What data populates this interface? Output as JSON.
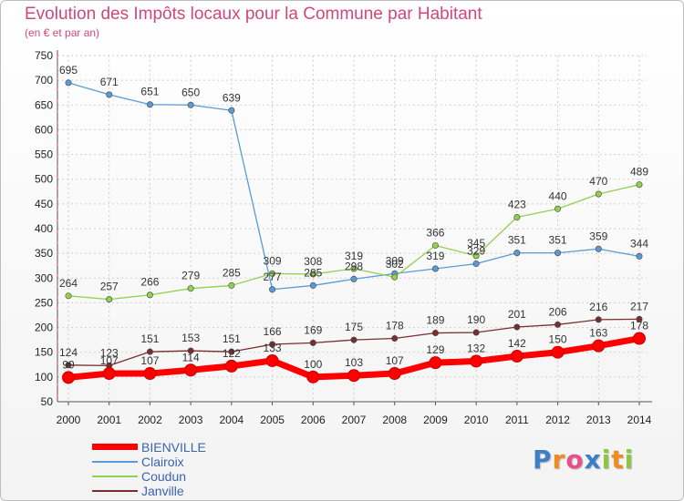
{
  "header": {
    "title": "Evolution des Impôts locaux pour la Commune par Habitant",
    "subtitle": "(en € et par an)"
  },
  "logo": {
    "text": "Proxiti",
    "letters": [
      "P",
      "r",
      "o",
      "x",
      "i",
      "t",
      "i"
    ],
    "colors": [
      "#3c7fc4",
      "#ef8b1f",
      "#e94f8a",
      "#3c7fc4",
      "#8dc63f",
      "#ef8b1f",
      "#8dc63f"
    ]
  },
  "chart_data": {
    "type": "line",
    "title": "Evolution des Impôts locaux pour la Commune par Habitant",
    "subtitle": "(en € et par an)",
    "x": [
      "2000",
      "2001",
      "2002",
      "2003",
      "2004",
      "2005",
      "2006",
      "2007",
      "2008",
      "2009",
      "2010",
      "2011",
      "2012",
      "2013",
      "2014"
    ],
    "ylim": [
      50,
      750
    ],
    "yticks": [
      50,
      100,
      150,
      200,
      250,
      300,
      350,
      400,
      450,
      500,
      550,
      600,
      650,
      700,
      750
    ],
    "grid": true,
    "legend": "bottom-left",
    "series": [
      {
        "name": "BIENVILLE",
        "color": "#ff0000",
        "values": [
          99,
          107,
          107,
          114,
          122,
          133,
          100,
          103,
          107,
          129,
          132,
          142,
          150,
          163,
          178
        ]
      },
      {
        "name": "Clairoix",
        "color": "#5b9bd5",
        "values": [
          695,
          671,
          651,
          650,
          639,
          277,
          285,
          298,
          309,
          319,
          329,
          351,
          351,
          359,
          344
        ]
      },
      {
        "name": "Coudun",
        "color": "#92d050",
        "values": [
          264,
          257,
          266,
          279,
          285,
          309,
          308,
          319,
          302,
          366,
          345,
          423,
          440,
          470,
          489
        ]
      },
      {
        "name": "Janville",
        "color": "#7a2e2e",
        "values": [
          124,
          123,
          151,
          153,
          151,
          166,
          169,
          175,
          178,
          189,
          190,
          201,
          206,
          216,
          217
        ]
      }
    ]
  }
}
